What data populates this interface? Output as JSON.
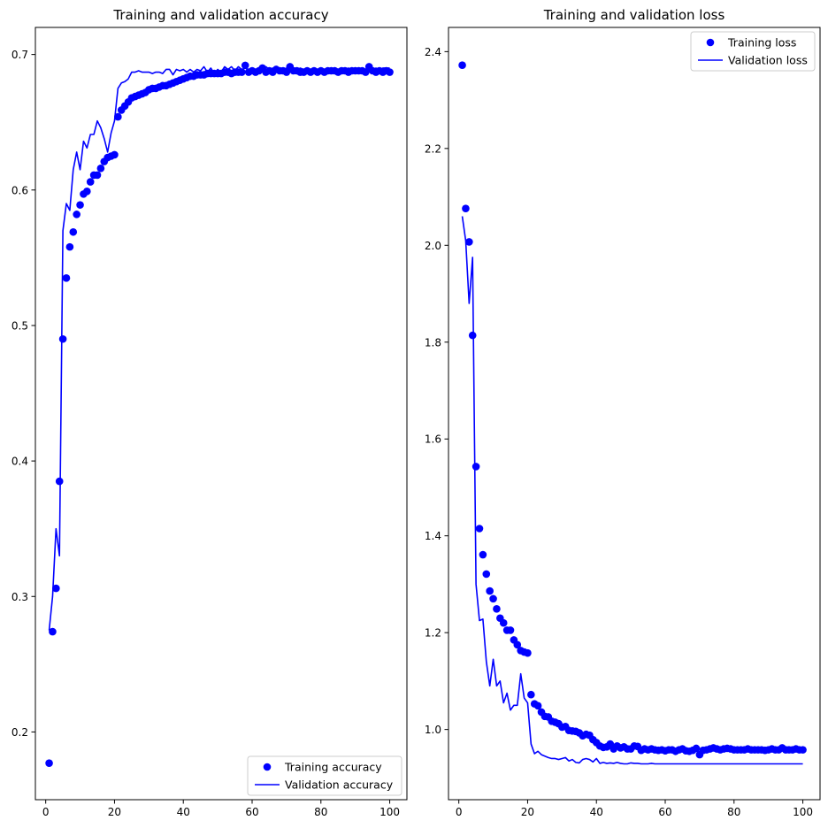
{
  "chart_data": [
    {
      "type": "line",
      "title": "Training and validation accuracy",
      "xlabel": "",
      "ylabel": "",
      "xlim": [
        -3,
        105
      ],
      "ylim": [
        0.15,
        0.72
      ],
      "xticks": [
        0,
        20,
        40,
        60,
        80,
        100
      ],
      "xtick_labels": [
        "0",
        "20",
        "40",
        "60",
        "80",
        "100"
      ],
      "yticks": [
        0.2,
        0.3,
        0.4,
        0.5,
        0.6,
        0.7
      ],
      "ytick_labels": [
        "0.2",
        "0.3",
        "0.4",
        "0.5",
        "0.6",
        "0.7"
      ],
      "grid": false,
      "legend_position": "lower-right",
      "x": [
        1,
        2,
        3,
        4,
        5,
        6,
        7,
        8,
        9,
        10,
        11,
        12,
        13,
        14,
        15,
        16,
        17,
        18,
        19,
        20,
        21,
        22,
        23,
        24,
        25,
        26,
        27,
        28,
        29,
        30,
        31,
        32,
        33,
        34,
        35,
        36,
        37,
        38,
        39,
        40,
        41,
        42,
        43,
        44,
        45,
        46,
        47,
        48,
        49,
        50,
        51,
        52,
        53,
        54,
        55,
        56,
        57,
        58,
        59,
        60,
        61,
        62,
        63,
        64,
        65,
        66,
        67,
        68,
        69,
        70,
        71,
        72,
        73,
        74,
        75,
        76,
        77,
        78,
        79,
        80,
        81,
        82,
        83,
        84,
        85,
        86,
        87,
        88,
        89,
        90,
        91,
        92,
        93,
        94,
        95,
        96,
        97,
        98,
        99,
        100
      ],
      "series": [
        {
          "name": "Training accuracy",
          "style": "dots",
          "color": "#0000ff",
          "values": [
            0.177,
            0.274,
            0.306,
            0.385,
            0.49,
            0.535,
            0.558,
            0.569,
            0.582,
            0.589,
            0.597,
            0.599,
            0.606,
            0.611,
            0.611,
            0.616,
            0.621,
            0.624,
            0.625,
            0.626,
            0.654,
            0.659,
            0.662,
            0.665,
            0.668,
            0.669,
            0.67,
            0.671,
            0.672,
            0.674,
            0.675,
            0.675,
            0.676,
            0.677,
            0.677,
            0.678,
            0.679,
            0.68,
            0.681,
            0.682,
            0.683,
            0.684,
            0.684,
            0.685,
            0.685,
            0.685,
            0.686,
            0.686,
            0.686,
            0.686,
            0.686,
            0.687,
            0.687,
            0.686,
            0.687,
            0.687,
            0.687,
            0.692,
            0.687,
            0.688,
            0.687,
            0.688,
            0.69,
            0.687,
            0.688,
            0.687,
            0.689,
            0.688,
            0.688,
            0.687,
            0.691,
            0.688,
            0.688,
            0.687,
            0.687,
            0.688,
            0.687,
            0.688,
            0.687,
            0.688,
            0.687,
            0.688,
            0.688,
            0.688,
            0.687,
            0.688,
            0.688,
            0.687,
            0.688,
            0.688,
            0.688,
            0.688,
            0.687,
            0.691,
            0.688,
            0.687,
            0.688,
            0.687,
            0.688,
            0.687
          ]
        },
        {
          "name": "Validation accuracy",
          "style": "line",
          "color": "#0000ff",
          "values": [
            0.275,
            0.3,
            0.35,
            0.33,
            0.57,
            0.59,
            0.585,
            0.615,
            0.628,
            0.615,
            0.636,
            0.631,
            0.641,
            0.641,
            0.651,
            0.646,
            0.638,
            0.628,
            0.642,
            0.651,
            0.675,
            0.679,
            0.68,
            0.682,
            0.687,
            0.687,
            0.688,
            0.687,
            0.687,
            0.687,
            0.686,
            0.687,
            0.687,
            0.686,
            0.689,
            0.689,
            0.685,
            0.689,
            0.688,
            0.689,
            0.687,
            0.689,
            0.687,
            0.689,
            0.688,
            0.691,
            0.687,
            0.69,
            0.686,
            0.689,
            0.687,
            0.691,
            0.689,
            0.691,
            0.688,
            0.691,
            0.689,
            0.69,
            0.689,
            0.69,
            0.689,
            0.69,
            0.689,
            0.691,
            0.689,
            0.69,
            0.689,
            0.69,
            0.689,
            0.69,
            0.689,
            0.69,
            0.689,
            0.69,
            0.689,
            0.69,
            0.689,
            0.69,
            0.689,
            0.69,
            0.689,
            0.69,
            0.689,
            0.69,
            0.689,
            0.69,
            0.689,
            0.69,
            0.689,
            0.69,
            0.689,
            0.69,
            0.689,
            0.69,
            0.689,
            0.69,
            0.689,
            0.69,
            0.69,
            0.69
          ]
        }
      ]
    },
    {
      "type": "line",
      "title": "Training and validation loss",
      "xlabel": "",
      "ylabel": "",
      "xlim": [
        -3,
        105
      ],
      "ylim": [
        0.855,
        2.45
      ],
      "xticks": [
        0,
        20,
        40,
        60,
        80,
        100
      ],
      "xtick_labels": [
        "0",
        "20",
        "40",
        "60",
        "80",
        "100"
      ],
      "yticks": [
        1.0,
        1.2,
        1.4,
        1.6,
        1.8,
        2.0,
        2.2,
        2.4
      ],
      "ytick_labels": [
        "1.0",
        "1.2",
        "1.4",
        "1.6",
        "1.8",
        "2.0",
        "2.2",
        "2.4"
      ],
      "grid": false,
      "legend_position": "upper-right",
      "x": [
        1,
        2,
        3,
        4,
        5,
        6,
        7,
        8,
        9,
        10,
        11,
        12,
        13,
        14,
        15,
        16,
        17,
        18,
        19,
        20,
        21,
        22,
        23,
        24,
        25,
        26,
        27,
        28,
        29,
        30,
        31,
        32,
        33,
        34,
        35,
        36,
        37,
        38,
        39,
        40,
        41,
        42,
        43,
        44,
        45,
        46,
        47,
        48,
        49,
        50,
        51,
        52,
        53,
        54,
        55,
        56,
        57,
        58,
        59,
        60,
        61,
        62,
        63,
        64,
        65,
        66,
        67,
        68,
        69,
        70,
        71,
        72,
        73,
        74,
        75,
        76,
        77,
        78,
        79,
        80,
        81,
        82,
        83,
        84,
        85,
        86,
        87,
        88,
        89,
        90,
        91,
        92,
        93,
        94,
        95,
        96,
        97,
        98,
        99,
        100
      ],
      "series": [
        {
          "name": "Training loss",
          "style": "dots",
          "color": "#0000ff",
          "values": [
            2.372,
            2.076,
            2.007,
            1.814,
            1.543,
            1.415,
            1.361,
            1.321,
            1.286,
            1.27,
            1.249,
            1.23,
            1.22,
            1.205,
            1.205,
            1.185,
            1.175,
            1.163,
            1.16,
            1.158,
            1.072,
            1.053,
            1.049,
            1.036,
            1.027,
            1.026,
            1.017,
            1.015,
            1.012,
            1.005,
            1.006,
            0.998,
            0.997,
            0.996,
            0.993,
            0.987,
            0.99,
            0.988,
            0.979,
            0.973,
            0.966,
            0.963,
            0.964,
            0.97,
            0.96,
            0.966,
            0.962,
            0.964,
            0.96,
            0.96,
            0.966,
            0.965,
            0.957,
            0.96,
            0.958,
            0.96,
            0.958,
            0.957,
            0.958,
            0.956,
            0.958,
            0.958,
            0.955,
            0.958,
            0.96,
            0.956,
            0.955,
            0.957,
            0.961,
            0.948,
            0.957,
            0.958,
            0.96,
            0.962,
            0.96,
            0.958,
            0.96,
            0.961,
            0.96,
            0.958,
            0.958,
            0.958,
            0.958,
            0.96,
            0.958,
            0.958,
            0.958,
            0.958,
            0.957,
            0.958,
            0.96,
            0.958,
            0.958,
            0.962,
            0.958,
            0.958,
            0.958,
            0.96,
            0.958,
            0.958
          ]
        },
        {
          "name": "Validation loss",
          "style": "line",
          "color": "#0000ff",
          "values": [
            2.06,
            2.01,
            1.88,
            1.975,
            1.3,
            1.225,
            1.228,
            1.14,
            1.09,
            1.145,
            1.09,
            1.1,
            1.055,
            1.075,
            1.04,
            1.05,
            1.05,
            1.115,
            1.065,
            1.055,
            0.97,
            0.95,
            0.955,
            0.948,
            0.945,
            0.942,
            0.94,
            0.94,
            0.938,
            0.94,
            0.942,
            0.935,
            0.938,
            0.932,
            0.931,
            0.938,
            0.94,
            0.938,
            0.933,
            0.94,
            0.93,
            0.932,
            0.93,
            0.931,
            0.93,
            0.932,
            0.93,
            0.929,
            0.929,
            0.931,
            0.93,
            0.93,
            0.929,
            0.929,
            0.929,
            0.93,
            0.929,
            0.929,
            0.929,
            0.929,
            0.929,
            0.929,
            0.929,
            0.929,
            0.929,
            0.929,
            0.929,
            0.929,
            0.929,
            0.929,
            0.929,
            0.929,
            0.929,
            0.929,
            0.929,
            0.929,
            0.929,
            0.929,
            0.929,
            0.929,
            0.929,
            0.929,
            0.929,
            0.929,
            0.929,
            0.929,
            0.929,
            0.929,
            0.929,
            0.929,
            0.929,
            0.929,
            0.929,
            0.929,
            0.929,
            0.929,
            0.929,
            0.929,
            0.929,
            0.929
          ]
        }
      ]
    }
  ]
}
